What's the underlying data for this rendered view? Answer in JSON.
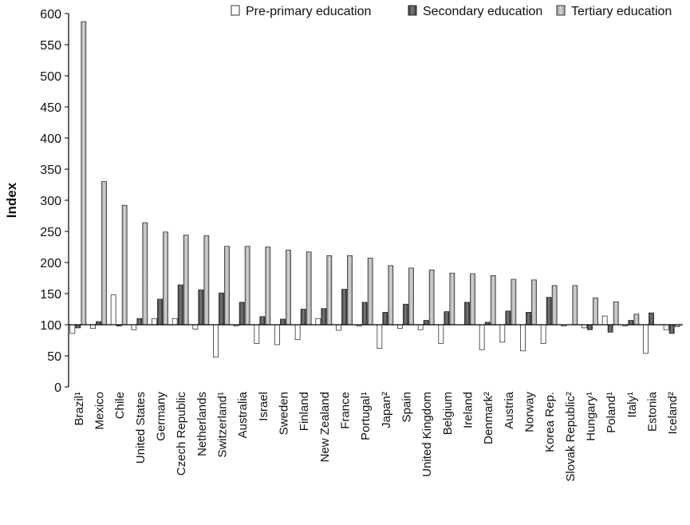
{
  "chart_data": {
    "type": "bar",
    "title": "",
    "xlabel": "",
    "ylabel": "Index",
    "ylim": [
      0,
      600
    ],
    "yticks": [
      0,
      50,
      100,
      150,
      200,
      250,
      300,
      350,
      400,
      450,
      500,
      550,
      600
    ],
    "baseline": 100,
    "legend_position": "top-right",
    "grid": false,
    "categories": [
      "Brazil¹",
      "Mexico",
      "Chile",
      "United States",
      "Germany",
      "Czech Republic",
      "Netherlands",
      "Switzerland¹",
      "Australia",
      "Israel",
      "Sweden",
      "Finland",
      "New Zealand",
      "France",
      "Portugal¹",
      "Japan²",
      "Spain",
      "United Kingdom",
      "Belgium",
      "Ireland",
      "Denmark²",
      "Austria",
      "Norway",
      "Korea Rep.",
      "Slovak Republic²",
      "Hungary¹",
      "Poland¹",
      "Italy¹",
      "Estonia",
      "Iceland²"
    ],
    "series": [
      {
        "name": "Pre-primary education",
        "color": "#ffffff",
        "values": [
          86,
          94,
          148,
          92,
          110,
          110,
          93,
          48,
          98,
          70,
          68,
          76,
          110,
          91,
          98,
          62,
          94,
          92,
          70,
          null,
          60,
          72,
          58,
          70,
          98,
          95,
          114,
          98,
          54,
          92
        ]
      },
      {
        "name": "Secondary education",
        "color": "#555555",
        "values": [
          95,
          105,
          98,
          110,
          141,
          164,
          156,
          151,
          136,
          113,
          109,
          125,
          126,
          157,
          136,
          120,
          133,
          107,
          121,
          136,
          104,
          122,
          120,
          144,
          null,
          92,
          88,
          107,
          119,
          86
        ]
      },
      {
        "name": "Tertiary education",
        "color": "#b3b3b3",
        "values": [
          587,
          330,
          292,
          264,
          249,
          244,
          243,
          226,
          226,
          225,
          220,
          217,
          211,
          211,
          207,
          195,
          191,
          188,
          183,
          182,
          179,
          173,
          172,
          163,
          163,
          143,
          137,
          117,
          null,
          97
        ]
      }
    ]
  }
}
